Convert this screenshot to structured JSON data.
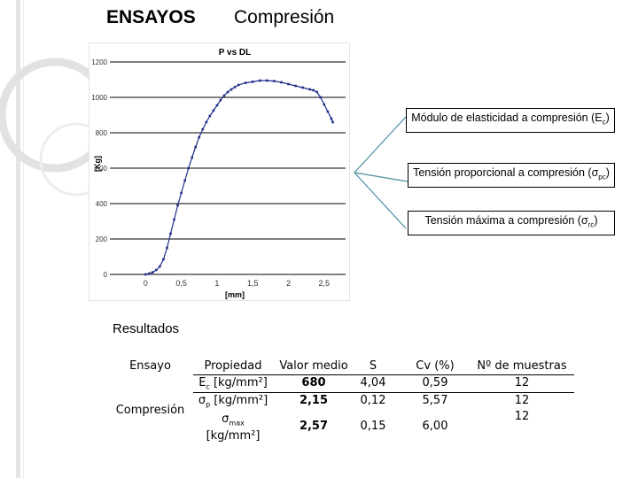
{
  "header": {
    "title": "ENSAYOS",
    "subtitle": "Compresión"
  },
  "colors": {
    "curve": "#1f2f8a",
    "grid": "#000000",
    "connector": "#4a8fa0",
    "deco": "#dcdcdc"
  },
  "chart_data": {
    "type": "scatter",
    "title": "P vs DL",
    "xlabel": "[mm]",
    "ylabel": "[Kg]",
    "xlim": [
      -0.5,
      2.8
    ],
    "ylim": [
      0,
      1250
    ],
    "xticks": [
      0,
      0.5,
      1,
      1.5,
      2,
      2.5
    ],
    "xtick_labels": [
      "0",
      "0,5",
      "1",
      "1,5",
      "2",
      "2,5"
    ],
    "yticks": [
      0,
      200,
      400,
      600,
      800,
      1000,
      1200
    ],
    "grid": "horizontal",
    "legend": "none",
    "series": [
      {
        "points": [
          [
            0.0,
            0
          ],
          [
            0.05,
            5
          ],
          [
            0.1,
            12
          ],
          [
            0.15,
            25
          ],
          [
            0.2,
            45
          ],
          [
            0.25,
            85
          ],
          [
            0.3,
            150
          ],
          [
            0.35,
            230
          ],
          [
            0.4,
            310
          ],
          [
            0.45,
            390
          ],
          [
            0.5,
            460
          ],
          [
            0.55,
            530
          ],
          [
            0.6,
            600
          ],
          [
            0.65,
            660
          ],
          [
            0.7,
            720
          ],
          [
            0.75,
            775
          ],
          [
            0.8,
            820
          ],
          [
            0.85,
            860
          ],
          [
            0.9,
            895
          ],
          [
            0.95,
            925
          ],
          [
            1.0,
            955
          ],
          [
            1.05,
            985
          ],
          [
            1.1,
            1010
          ],
          [
            1.15,
            1030
          ],
          [
            1.2,
            1045
          ],
          [
            1.25,
            1058
          ],
          [
            1.3,
            1070
          ],
          [
            1.4,
            1082
          ],
          [
            1.5,
            1088
          ],
          [
            1.6,
            1095
          ],
          [
            1.7,
            1095
          ],
          [
            1.8,
            1092
          ],
          [
            1.9,
            1085
          ],
          [
            2.0,
            1075
          ],
          [
            2.1,
            1065
          ],
          [
            2.2,
            1055
          ],
          [
            2.3,
            1045
          ],
          [
            2.35,
            1040
          ],
          [
            2.4,
            1030
          ],
          [
            2.45,
            1000
          ],
          [
            2.5,
            960
          ],
          [
            2.55,
            920
          ],
          [
            2.6,
            880
          ],
          [
            2.62,
            860
          ]
        ]
      }
    ]
  },
  "callouts": {
    "elasticity": {
      "text": "Módulo de elasticidad a compresión (E",
      "sub": "c",
      "close": ")"
    },
    "proportional": {
      "text": "Tensión proporcional a compresión (σ",
      "sub": "pc",
      "close": ")"
    },
    "maximum": {
      "text": "Tensión máxima a compresión (σ",
      "sub": "rc",
      "close": ")"
    }
  },
  "results": {
    "title": "Resultados",
    "headers": {
      "ensayo": "Ensayo",
      "propiedad": "Propiedad",
      "valor_medio": "Valor medio",
      "s": "S",
      "cv": "Cv (%)",
      "muestras": "Nº de muestras"
    },
    "ensayo_value": "Compresión",
    "rows": [
      {
        "prop_main": "E",
        "prop_sub": "c",
        "prop_unit": " [kg/mm²]",
        "valor": "680",
        "s": "4,04",
        "cv": "0,59",
        "n": "12"
      },
      {
        "prop_main": "σ",
        "prop_sub": "p",
        "prop_unit": " [kg/mm²]",
        "valor": "2,15",
        "s": "0,12",
        "cv": "5,57",
        "n": "12"
      },
      {
        "prop_main": "σ",
        "prop_sub": "max",
        "prop_unit": "[kg/mm²]",
        "valor": "2,57",
        "s": "0,15",
        "cv": "6,00",
        "n": "12"
      }
    ]
  }
}
